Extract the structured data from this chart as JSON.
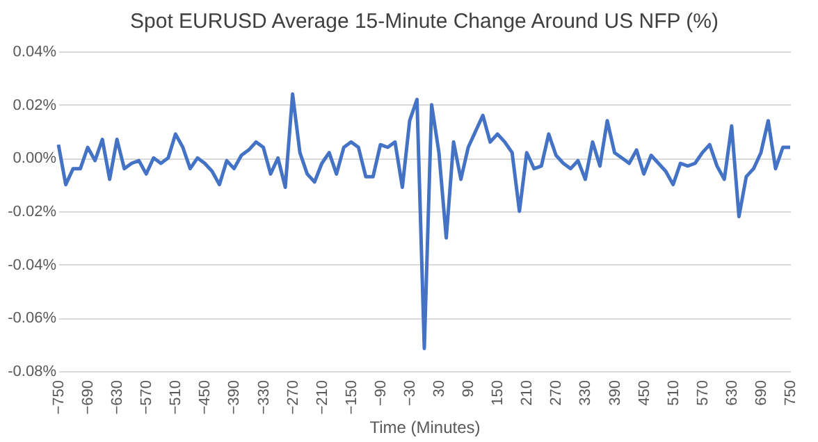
{
  "chart_data": {
    "type": "line",
    "title": "Spot EURUSD Average 15-Minute Change Around US NFP (%)",
    "xlabel": "Time (Minutes)",
    "x": [
      -750,
      -735,
      -720,
      -705,
      -690,
      -675,
      -660,
      -645,
      -630,
      -615,
      -600,
      -585,
      -570,
      -555,
      -540,
      -525,
      -510,
      -495,
      -480,
      -465,
      -450,
      -435,
      -420,
      -405,
      -390,
      -375,
      -360,
      -345,
      -330,
      -315,
      -300,
      -285,
      -270,
      -255,
      -240,
      -225,
      -210,
      -195,
      -180,
      -165,
      -150,
      -135,
      -120,
      -105,
      -90,
      -75,
      -60,
      -45,
      -30,
      -15,
      0,
      15,
      30,
      45,
      60,
      75,
      90,
      105,
      120,
      135,
      150,
      165,
      180,
      195,
      210,
      225,
      240,
      255,
      270,
      285,
      300,
      315,
      330,
      345,
      360,
      375,
      390,
      405,
      420,
      435,
      450,
      465,
      480,
      495,
      510,
      525,
      540,
      555,
      570,
      585,
      600,
      615,
      630,
      645,
      660,
      675,
      690,
      705,
      720,
      735,
      750
    ],
    "series": [
      {
        "color": "#4472c4",
        "values": [
          0.005,
          -0.01,
          -0.004,
          -0.004,
          0.004,
          -0.001,
          0.007,
          -0.008,
          0.007,
          -0.004,
          -0.002,
          -0.001,
          -0.006,
          0.0,
          -0.002,
          0.0,
          0.009,
          0.004,
          -0.004,
          0.0,
          -0.002,
          -0.005,
          -0.01,
          -0.001,
          -0.004,
          0.001,
          0.003,
          0.006,
          0.004,
          -0.006,
          0.0,
          -0.011,
          0.024,
          0.002,
          -0.006,
          -0.009,
          -0.002,
          0.002,
          -0.006,
          0.004,
          0.006,
          0.004,
          -0.007,
          -0.007,
          0.005,
          0.004,
          0.006,
          -0.011,
          0.014,
          0.022,
          -0.0715,
          0.02,
          0.002,
          -0.03,
          0.006,
          -0.008,
          0.004,
          0.01,
          0.016,
          0.006,
          0.009,
          0.006,
          0.002,
          -0.02,
          0.002,
          -0.004,
          -0.003,
          0.009,
          0.001,
          -0.002,
          -0.004,
          -0.001,
          -0.008,
          0.006,
          -0.003,
          0.014,
          0.002,
          0.0,
          -0.002,
          0.003,
          -0.006,
          0.001,
          -0.002,
          -0.005,
          -0.01,
          -0.002,
          -0.003,
          -0.002,
          0.002,
          0.005,
          -0.003,
          -0.008,
          0.012,
          -0.022,
          -0.007,
          -0.004,
          0.002,
          0.014,
          -0.004,
          0.004,
          0.004
        ]
      }
    ],
    "xlim": [
      -750,
      750
    ],
    "xticks": [
      -750,
      -690,
      -630,
      -570,
      -510,
      -450,
      -390,
      -330,
      -270,
      -210,
      -150,
      -90,
      -30,
      30,
      90,
      150,
      210,
      270,
      330,
      390,
      450,
      510,
      570,
      630,
      690,
      750
    ],
    "ylim": [
      -0.08,
      0.04
    ],
    "yticks": [
      {
        "value": 0.04,
        "label": "0.04%"
      },
      {
        "value": 0.02,
        "label": "0.02%"
      },
      {
        "value": 0,
        "label": "0.00%"
      },
      {
        "value": -0.02,
        "label": "-0.02%"
      },
      {
        "value": -0.04,
        "label": "-0.04%"
      },
      {
        "value": -0.06,
        "label": "-0.06%"
      },
      {
        "value": -0.08,
        "label": "-0.08%"
      }
    ],
    "grid": "y",
    "marker": "none",
    "line_style": "solid"
  }
}
